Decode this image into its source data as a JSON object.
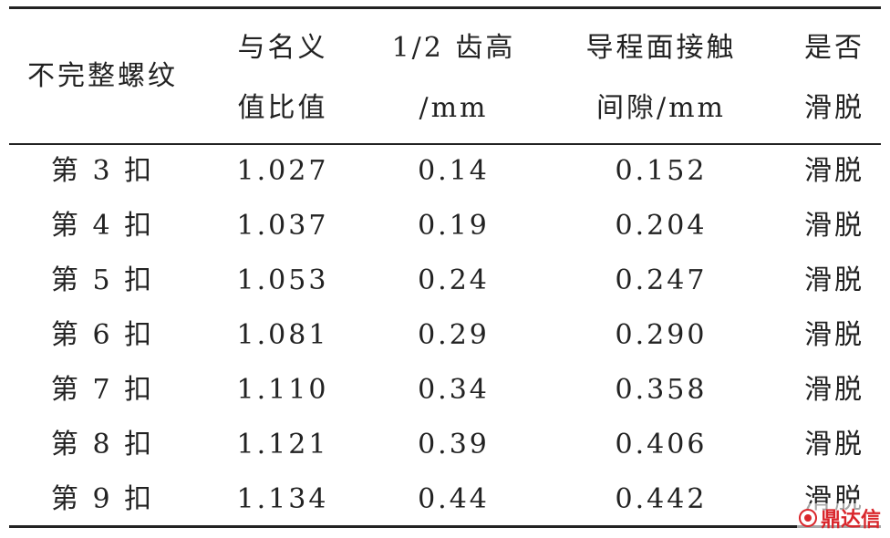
{
  "table": {
    "headers": [
      {
        "lines": [
          "不完整螺纹"
        ]
      },
      {
        "lines": [
          "与名义",
          "值比值"
        ]
      },
      {
        "lines": [
          "1/2 齿高",
          "/mm"
        ]
      },
      {
        "lines": [
          "导程面接触",
          "间隙/mm"
        ]
      },
      {
        "lines": [
          "是否",
          "滑脱"
        ]
      }
    ],
    "rows": [
      [
        "第 3 扣",
        "1.027",
        "0.14",
        "0.152",
        "滑脱"
      ],
      [
        "第 4 扣",
        "1.037",
        "0.19",
        "0.204",
        "滑脱"
      ],
      [
        "第 5 扣",
        "1.053",
        "0.24",
        "0.247",
        "滑脱"
      ],
      [
        "第 6 扣",
        "1.081",
        "0.29",
        "0.290",
        "滑脱"
      ],
      [
        "第 7 扣",
        "1.110",
        "0.34",
        "0.358",
        "滑脱"
      ],
      [
        "第 8 扣",
        "1.121",
        "0.39",
        "0.406",
        "滑脱"
      ],
      [
        "第 9 扣",
        "1.134",
        "0.44",
        "0.442",
        "滑脱"
      ]
    ]
  },
  "watermark": {
    "text": "鼎达信",
    "icon": "brand-logo-icon",
    "color": "#d9262b"
  }
}
